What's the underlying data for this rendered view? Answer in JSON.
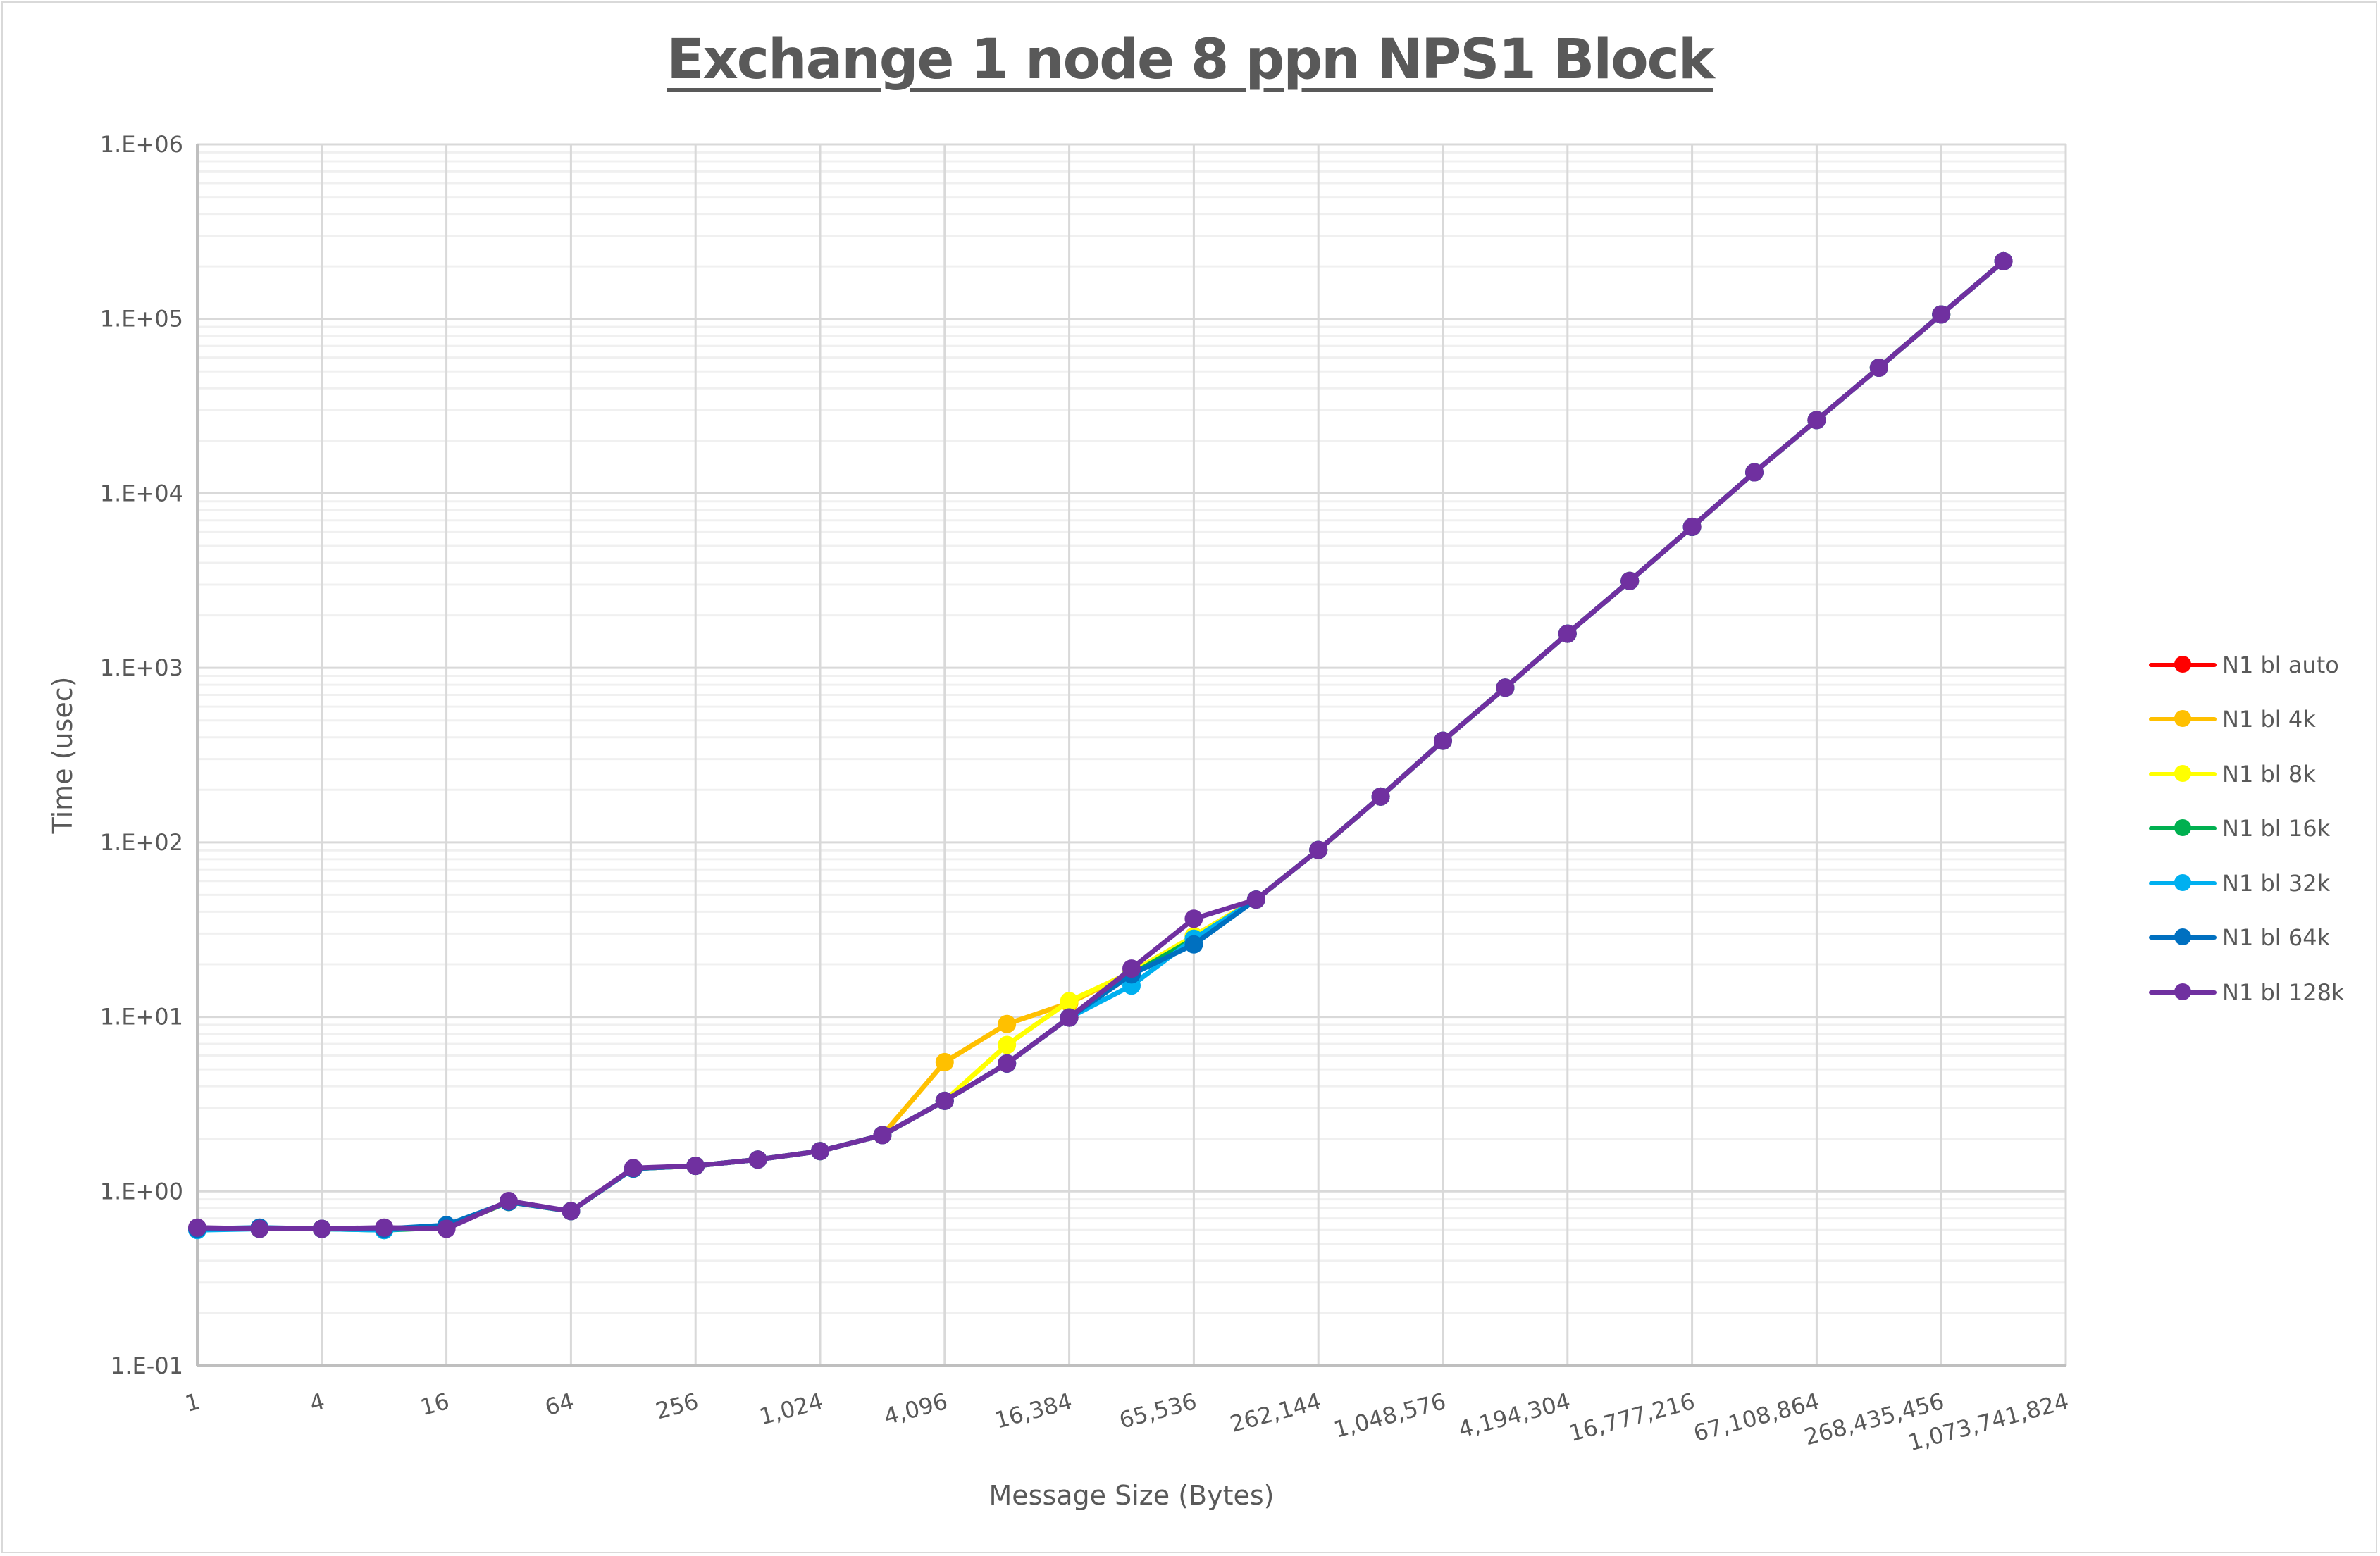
{
  "chart": {
    "title": "Exchange 1 node 8 ppn NPS1 Block",
    "xlabel": "Message Size (Bytes)",
    "ylabel": "Time (usec)",
    "y_ticks": [
      "1.E+06",
      "1.E+05",
      "1.E+04",
      "1.E+03",
      "1.E+02",
      "1.E+01",
      "1.E+00",
      "1.E-01"
    ],
    "x_ticks": [
      "1",
      "4",
      "16",
      "64",
      "256",
      "1,024",
      "4,096",
      "16,384",
      "65,536",
      "262,144",
      "1,048,576",
      "4,194,304",
      "16,777,216",
      "67,108,864",
      "268,435,456",
      "1,073,741,824"
    ]
  },
  "legend": {
    "items": [
      {
        "label": "N1 bl auto",
        "color": "#ff0000"
      },
      {
        "label": "N1 bl 4k",
        "color": "#ffc000"
      },
      {
        "label": "N1 bl 8k",
        "color": "#ffff00"
      },
      {
        "label": "N1 bl 16k",
        "color": "#00b050"
      },
      {
        "label": "N1 bl 32k",
        "color": "#00b0f0"
      },
      {
        "label": "N1 bl 64k",
        "color": "#0070c0"
      },
      {
        "label": "N1 bl 128k",
        "color": "#7030a0"
      }
    ]
  },
  "chart_data": {
    "type": "line",
    "title": "Exchange 1 node 8 ppn NPS1 Block",
    "xlabel": "Message Size (Bytes)",
    "ylabel": "Time (usec)",
    "xscale": "log2",
    "yscale": "log10",
    "ylim": [
      0.1,
      1000000
    ],
    "grid": true,
    "legend_position": "right",
    "x": [
      1,
      2,
      4,
      8,
      16,
      32,
      64,
      128,
      256,
      512,
      1024,
      2048,
      4096,
      8192,
      16384,
      32768,
      65536,
      131072,
      262144,
      524288,
      1048576,
      2097152,
      4194304,
      8388608,
      16777216,
      33554432,
      67108864,
      134217728,
      268435456,
      536870912
    ],
    "series": [
      {
        "name": "N1 bl auto",
        "color": "#ff0000",
        "values": [
          0.61,
          0.61,
          0.61,
          0.61,
          0.62,
          0.87,
          0.77,
          1.35,
          1.4,
          1.52,
          1.7,
          2.1,
          3.3,
          5.4,
          9.9,
          17.5,
          29,
          47,
          90.5,
          183,
          382,
          770,
          1570,
          3150,
          6430,
          13200,
          26300,
          52500,
          106000,
          214000
        ]
      },
      {
        "name": "N1 bl 4k",
        "color": "#ffc000",
        "values": [
          0.61,
          0.61,
          0.61,
          0.61,
          0.62,
          0.87,
          0.77,
          1.35,
          1.4,
          1.52,
          1.7,
          2.1,
          5.5,
          9.1,
          12.0,
          18.0,
          29,
          47,
          90.5,
          183,
          382,
          770,
          1570,
          3150,
          6430,
          13200,
          26300,
          52500,
          106000,
          214000
        ]
      },
      {
        "name": "N1 bl 8k",
        "color": "#ffff00",
        "values": [
          0.61,
          0.61,
          0.61,
          0.61,
          0.62,
          0.87,
          0.77,
          1.35,
          1.4,
          1.52,
          1.7,
          2.1,
          3.3,
          6.9,
          12.3,
          18.0,
          29,
          47,
          90.5,
          183,
          382,
          770,
          1570,
          3150,
          6430,
          13200,
          26300,
          52500,
          106000,
          214000
        ]
      },
      {
        "name": "N1 bl 16k",
        "color": "#00b050",
        "values": [
          0.61,
          0.61,
          0.61,
          0.6,
          0.62,
          0.87,
          0.77,
          1.35,
          1.4,
          1.52,
          1.7,
          2.1,
          3.3,
          5.4,
          9.9,
          17.5,
          28,
          47,
          90.5,
          183,
          382,
          770,
          1570,
          3150,
          6430,
          13200,
          26300,
          52500,
          106000,
          214000
        ]
      },
      {
        "name": "N1 bl 32k",
        "color": "#00b0f0",
        "values": [
          0.6,
          0.61,
          0.61,
          0.6,
          0.63,
          0.87,
          0.77,
          1.35,
          1.4,
          1.52,
          1.7,
          2.1,
          3.3,
          5.4,
          9.9,
          15.1,
          28,
          47,
          90.5,
          183,
          382,
          770,
          1570,
          3150,
          6430,
          13200,
          26300,
          52500,
          106000,
          214000
        ]
      },
      {
        "name": "N1 bl 64k",
        "color": "#0070c0",
        "values": [
          0.61,
          0.62,
          0.61,
          0.61,
          0.64,
          0.87,
          0.77,
          1.35,
          1.4,
          1.52,
          1.7,
          2.1,
          3.3,
          5.4,
          9.9,
          17.5,
          26,
          47,
          90.5,
          183,
          382,
          770,
          1570,
          3150,
          6430,
          13200,
          26300,
          52500,
          106000,
          214000
        ]
      },
      {
        "name": "N1 bl 128k",
        "color": "#7030a0",
        "values": [
          0.62,
          0.61,
          0.61,
          0.62,
          0.61,
          0.88,
          0.77,
          1.36,
          1.4,
          1.52,
          1.7,
          2.1,
          3.3,
          5.4,
          9.9,
          18.9,
          36.5,
          47,
          90.5,
          183,
          382,
          770,
          1570,
          3150,
          6430,
          13200,
          26300,
          52500,
          106000,
          214000
        ]
      }
    ]
  }
}
